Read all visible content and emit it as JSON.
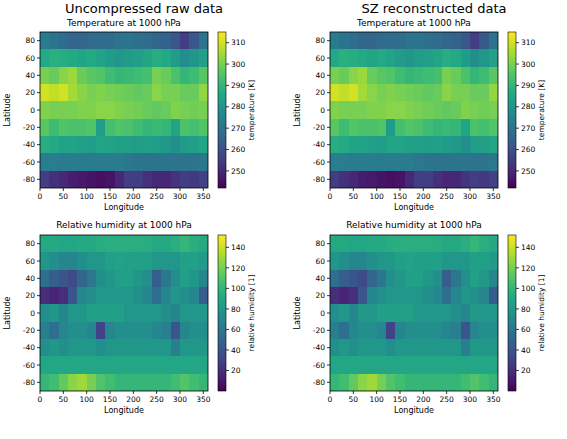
{
  "chart_data": [
    {
      "type": "heatmap",
      "subtitle": "Uncompressed raw data",
      "title": "Temperature at 1000 hPa",
      "x_label": "Longitude",
      "y_label": "Latitude",
      "xlim": [
        0,
        360
      ],
      "ylim": [
        -90,
        90
      ],
      "xticks": [
        0,
        50,
        100,
        150,
        200,
        250,
        300,
        350
      ],
      "yticks": [
        -80,
        -60,
        -40,
        -20,
        0,
        20,
        40,
        60,
        80
      ],
      "x": [
        10,
        30,
        50,
        70,
        90,
        110,
        130,
        150,
        170,
        190,
        210,
        230,
        250,
        270,
        290,
        310,
        330,
        350
      ],
      "y": [
        80,
        60,
        40,
        20,
        0,
        -20,
        -40,
        -60,
        -80
      ],
      "cells": [
        [
          272,
          270,
          268,
          266,
          266,
          267,
          268,
          268,
          270,
          270,
          269,
          268,
          266,
          265,
          262,
          255,
          262,
          270
        ],
        [
          286,
          288,
          287,
          286,
          285,
          286,
          284,
          282,
          280,
          282,
          283,
          285,
          287,
          286,
          282,
          278,
          280,
          283
        ],
        [
          300,
          298,
          302,
          304,
          298,
          296,
          295,
          292,
          290,
          291,
          292,
          293,
          300,
          298,
          294,
          290,
          292,
          296
        ],
        [
          310,
          308,
          310,
          305,
          302,
          300,
          301,
          300,
          299,
          298,
          297,
          298,
          302,
          300,
          300,
          298,
          298,
          303
        ],
        [
          301,
          300,
          300,
          300,
          301,
          301,
          302,
          302,
          301,
          300,
          299,
          298,
          297,
          298,
          301,
          300,
          299,
          300
        ],
        [
          296,
          292,
          295,
          294,
          294,
          295,
          282,
          293,
          295,
          294,
          292,
          290,
          291,
          290,
          285,
          294,
          293,
          295
        ],
        [
          287,
          286,
          284,
          284,
          283,
          282,
          285,
          284,
          283,
          283,
          282,
          283,
          282,
          281,
          278,
          282,
          283,
          285
        ],
        [
          273,
          273,
          272,
          272,
          272,
          272,
          272,
          272,
          272,
          271,
          270,
          270,
          270,
          270,
          270,
          270,
          270,
          271
        ],
        [
          255,
          252,
          250,
          248,
          247,
          246,
          245,
          246,
          250,
          255,
          255,
          252,
          250,
          250,
          253,
          255,
          254,
          256
        ]
      ],
      "colorbar": {
        "label": "temperature [K]",
        "range": [
          242,
          315
        ],
        "ticks": [
          250,
          260,
          270,
          280,
          290,
          300,
          310
        ]
      }
    },
    {
      "type": "heatmap",
      "subtitle": "SZ reconstructed data",
      "title": "Temperature at 1000 hPa",
      "x_label": "Longitude",
      "y_label": "Latitude",
      "xlim": [
        0,
        360
      ],
      "ylim": [
        -90,
        90
      ],
      "xticks": [
        0,
        50,
        100,
        150,
        200,
        250,
        300,
        350
      ],
      "yticks": [
        -80,
        -60,
        -40,
        -20,
        0,
        20,
        40,
        60,
        80
      ],
      "x": [
        10,
        30,
        50,
        70,
        90,
        110,
        130,
        150,
        170,
        190,
        210,
        230,
        250,
        270,
        290,
        310,
        330,
        350
      ],
      "y": [
        80,
        60,
        40,
        20,
        0,
        -20,
        -40,
        -60,
        -80
      ],
      "cells": [
        [
          272,
          270,
          268,
          266,
          266,
          267,
          268,
          268,
          270,
          270,
          269,
          268,
          266,
          265,
          262,
          255,
          262,
          270
        ],
        [
          286,
          288,
          287,
          286,
          285,
          286,
          284,
          282,
          280,
          282,
          283,
          285,
          287,
          286,
          282,
          278,
          280,
          283
        ],
        [
          300,
          298,
          302,
          304,
          298,
          296,
          295,
          292,
          290,
          291,
          292,
          293,
          300,
          298,
          294,
          290,
          292,
          296
        ],
        [
          310,
          308,
          310,
          305,
          302,
          300,
          301,
          300,
          299,
          298,
          297,
          298,
          302,
          300,
          300,
          298,
          298,
          303
        ],
        [
          301,
          300,
          300,
          300,
          301,
          301,
          302,
          302,
          301,
          300,
          299,
          298,
          297,
          298,
          301,
          300,
          299,
          300
        ],
        [
          296,
          292,
          295,
          294,
          294,
          295,
          282,
          293,
          295,
          294,
          292,
          290,
          291,
          290,
          285,
          294,
          293,
          295
        ],
        [
          287,
          286,
          284,
          284,
          283,
          282,
          285,
          284,
          283,
          283,
          282,
          283,
          282,
          281,
          278,
          282,
          283,
          285
        ],
        [
          273,
          273,
          272,
          272,
          272,
          272,
          272,
          272,
          272,
          271,
          270,
          270,
          270,
          270,
          270,
          270,
          270,
          271
        ],
        [
          255,
          252,
          250,
          248,
          247,
          246,
          245,
          246,
          250,
          255,
          255,
          252,
          250,
          250,
          253,
          255,
          254,
          256
        ]
      ],
      "colorbar": {
        "label": "temperature [K]",
        "range": [
          242,
          315
        ],
        "ticks": [
          250,
          260,
          270,
          280,
          290,
          300,
          310
        ]
      }
    },
    {
      "type": "heatmap",
      "title": "Relative humidity at 1000 hPa",
      "x_label": "Longitude",
      "y_label": "Latitude",
      "xlim": [
        0,
        360
      ],
      "ylim": [
        -90,
        90
      ],
      "xticks": [
        0,
        50,
        100,
        150,
        200,
        250,
        300,
        350
      ],
      "yticks": [
        -80,
        -60,
        -40,
        -20,
        0,
        20,
        40,
        60,
        80
      ],
      "x": [
        10,
        30,
        50,
        70,
        90,
        110,
        130,
        150,
        170,
        190,
        210,
        230,
        250,
        270,
        290,
        310,
        330,
        350
      ],
      "y": [
        80,
        60,
        40,
        20,
        0,
        -20,
        -40,
        -60,
        -80
      ],
      "cells": [
        [
          92,
          92,
          90,
          90,
          92,
          92,
          94,
          95,
          95,
          95,
          95,
          94,
          92,
          92,
          95,
          100,
          95,
          92
        ],
        [
          80,
          75,
          70,
          70,
          75,
          80,
          80,
          85,
          88,
          85,
          85,
          85,
          80,
          80,
          80,
          85,
          85,
          82
        ],
        [
          55,
          45,
          40,
          35,
          50,
          60,
          75,
          80,
          85,
          85,
          80,
          75,
          45,
          60,
          75,
          85,
          80,
          70
        ],
        [
          20,
          15,
          20,
          40,
          70,
          75,
          80,
          80,
          80,
          80,
          75,
          70,
          55,
          70,
          80,
          75,
          70,
          45
        ],
        [
          75,
          80,
          70,
          80,
          80,
          85,
          85,
          85,
          85,
          80,
          80,
          80,
          80,
          75,
          70,
          80,
          80,
          80
        ],
        [
          65,
          55,
          70,
          75,
          75,
          70,
          30,
          70,
          75,
          75,
          75,
          75,
          70,
          65,
          40,
          70,
          75,
          75
        ],
        [
          75,
          80,
          75,
          80,
          80,
          80,
          75,
          80,
          80,
          80,
          80,
          80,
          80,
          80,
          65,
          80,
          80,
          80
        ],
        [
          90,
          90,
          90,
          90,
          90,
          90,
          90,
          90,
          90,
          90,
          90,
          90,
          90,
          90,
          90,
          90,
          90,
          90
        ],
        [
          100,
          105,
          115,
          125,
          130,
          120,
          110,
          105,
          100,
          100,
          100,
          100,
          100,
          100,
          105,
          110,
          105,
          100
        ]
      ],
      "colorbar": {
        "label": "relative humidity [1]",
        "range": [
          0,
          152
        ],
        "ticks": [
          20,
          40,
          60,
          80,
          100,
          120,
          140
        ]
      }
    },
    {
      "type": "heatmap",
      "title": "Relative humidity at 1000 hPa",
      "x_label": "Longitude",
      "y_label": "Latitude",
      "xlim": [
        0,
        360
      ],
      "ylim": [
        -90,
        90
      ],
      "xticks": [
        0,
        50,
        100,
        150,
        200,
        250,
        300,
        350
      ],
      "yticks": [
        -80,
        -60,
        -40,
        -20,
        0,
        20,
        40,
        60,
        80
      ],
      "x": [
        10,
        30,
        50,
        70,
        90,
        110,
        130,
        150,
        170,
        190,
        210,
        230,
        250,
        270,
        290,
        310,
        330,
        350
      ],
      "y": [
        80,
        60,
        40,
        20,
        0,
        -20,
        -40,
        -60,
        -80
      ],
      "cells": [
        [
          92,
          92,
          90,
          90,
          92,
          92,
          94,
          95,
          95,
          95,
          95,
          94,
          92,
          92,
          95,
          100,
          95,
          92
        ],
        [
          80,
          75,
          70,
          70,
          75,
          80,
          80,
          85,
          88,
          85,
          85,
          85,
          80,
          80,
          80,
          85,
          85,
          82
        ],
        [
          55,
          45,
          40,
          35,
          50,
          60,
          75,
          80,
          85,
          85,
          80,
          75,
          45,
          60,
          75,
          85,
          80,
          70
        ],
        [
          20,
          15,
          20,
          40,
          70,
          75,
          80,
          80,
          80,
          80,
          75,
          70,
          55,
          70,
          80,
          75,
          70,
          45
        ],
        [
          75,
          80,
          70,
          80,
          80,
          85,
          85,
          85,
          85,
          80,
          80,
          80,
          80,
          75,
          70,
          80,
          80,
          80
        ],
        [
          65,
          55,
          70,
          75,
          75,
          70,
          30,
          70,
          75,
          75,
          75,
          75,
          70,
          65,
          40,
          70,
          75,
          75
        ],
        [
          75,
          80,
          75,
          80,
          80,
          80,
          75,
          80,
          80,
          80,
          80,
          80,
          80,
          80,
          65,
          80,
          80,
          80
        ],
        [
          90,
          90,
          90,
          90,
          90,
          90,
          90,
          90,
          90,
          90,
          90,
          90,
          90,
          90,
          90,
          90,
          90,
          90
        ],
        [
          100,
          105,
          115,
          125,
          130,
          120,
          110,
          105,
          100,
          100,
          100,
          100,
          100,
          100,
          105,
          110,
          105,
          100
        ]
      ],
      "colorbar": {
        "label": "relative humidity [1]",
        "range": [
          0,
          152
        ],
        "ticks": [
          20,
          40,
          60,
          80,
          100,
          120,
          140
        ]
      }
    }
  ]
}
